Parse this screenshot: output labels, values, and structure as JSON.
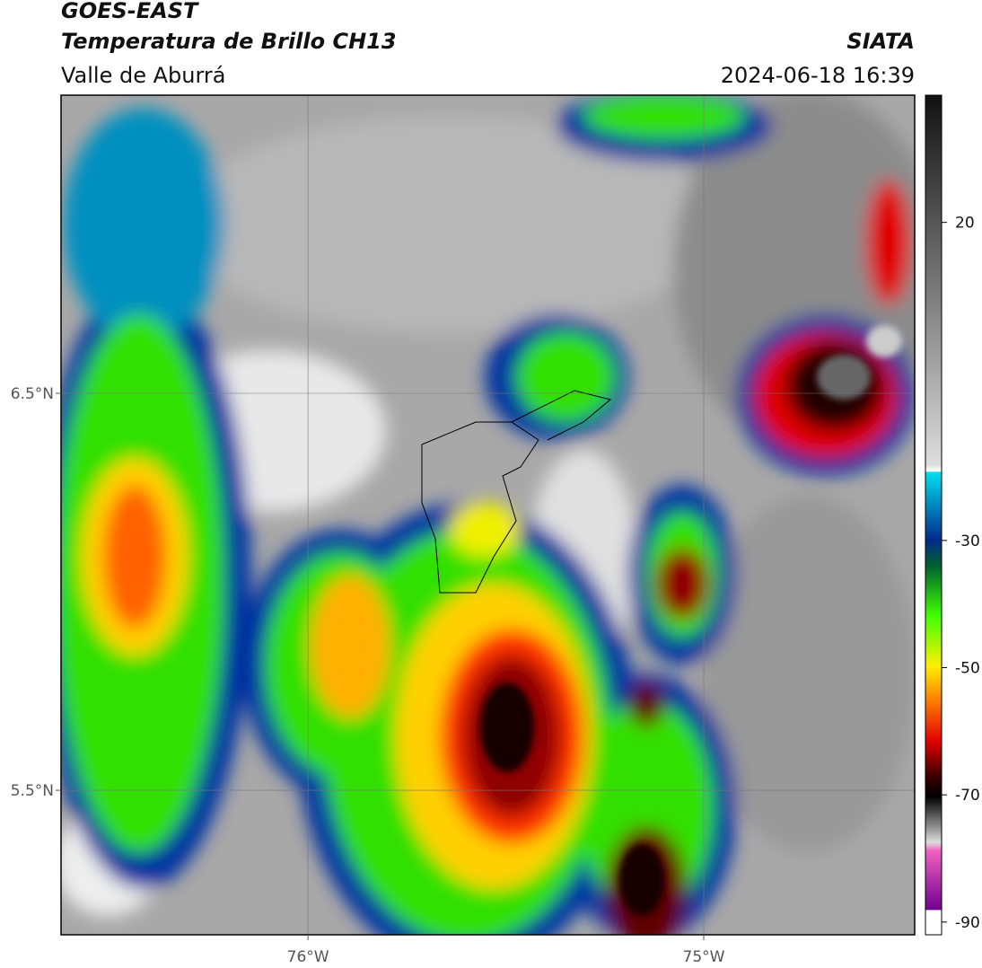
{
  "map": {
    "title": "GOES-EAST",
    "subtitle": "Temperatura de Brillo CH13",
    "region": "Valle de Aburrá",
    "source": "SIATA",
    "datetime": "2024-06-18 16:39",
    "xlim": [
      -76.624,
      -74.467
    ],
    "ylim": [
      5.136,
      7.251
    ],
    "xticks": [
      {
        "value": -76,
        "label": "76°W"
      },
      {
        "value": -75,
        "label": "75°W"
      }
    ],
    "yticks": [
      {
        "value": 6.5,
        "label": "6.5°N"
      },
      {
        "value": 5.5,
        "label": "5.5°N"
      }
    ],
    "colorbar": {
      "clim": [
        -92,
        40
      ],
      "ticks": [
        20,
        -30,
        -50,
        -70,
        -90
      ]
    }
  }
}
